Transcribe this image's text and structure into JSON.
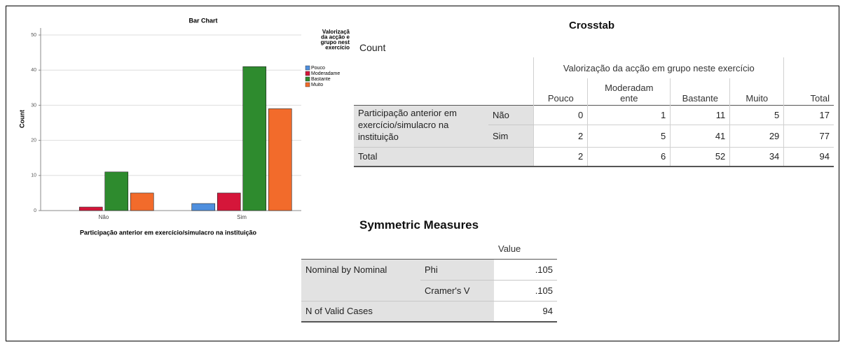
{
  "chart_data": {
    "type": "bar",
    "title": "Bar Chart",
    "x_label": "Participação anterior em exercício/simulacro na instituição",
    "y_label": "Count",
    "categories": [
      "Não",
      "Sim"
    ],
    "legend_title": [
      "Valorizaçã",
      "da acção e",
      "grupo nest",
      "exercício"
    ],
    "series": [
      {
        "name": "Pouco",
        "color": "#4f8fde",
        "values": [
          0,
          2
        ]
      },
      {
        "name": "Moderadame",
        "color": "#d5163a",
        "values": [
          1,
          5
        ]
      },
      {
        "name": "Bastante",
        "color": "#2e8b2e",
        "values": [
          11,
          41
        ]
      },
      {
        "name": "Muito",
        "color": "#f26b2b",
        "values": [
          5,
          29
        ]
      }
    ],
    "ylim": [
      0,
      52
    ],
    "yticks": [
      0,
      10,
      20,
      30,
      40,
      50
    ],
    "grid": true
  },
  "crosstab": {
    "title": "Crosstab",
    "subtitle": "Count",
    "column_group": "Valorização da acção em grupo neste exercício",
    "columns": [
      "Pouco",
      "Moderadamente",
      "Bastante",
      "Muito",
      "Total"
    ],
    "row_group": "Participação anterior em exercício/simulacro na instituição",
    "rows": [
      {
        "label": "Não",
        "values": [
          0,
          1,
          11,
          5,
          17
        ]
      },
      {
        "label": "Sim",
        "values": [
          2,
          5,
          41,
          29,
          77
        ]
      }
    ],
    "total": {
      "label": "Total",
      "values": [
        2,
        6,
        52,
        34,
        94
      ]
    }
  },
  "symmetric_measures": {
    "title": "Symmetric Measures",
    "header": "Value",
    "group": "Nominal by Nominal",
    "rows": [
      {
        "label": "Phi",
        "value": ".105"
      },
      {
        "label": "Cramer's V",
        "value": ".105"
      }
    ],
    "valid": {
      "label": "N of Valid Cases",
      "value": "94"
    }
  }
}
